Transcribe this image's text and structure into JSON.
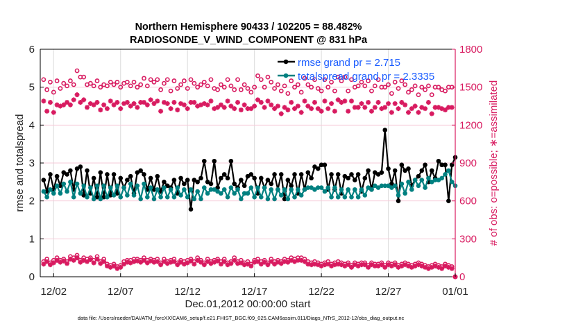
{
  "chart_data": {
    "type": "line",
    "title": [
      "Northern Hemisphere 90433 / 102205 = 88.482%",
      "RADIOSONDE_V_WIND_COMPONENT @ 831 hPa"
    ],
    "xlabel": "Dec.01,2012 00:00:00 start",
    "ylabel": "rmse and totalspread",
    "y2label": "# of obs: o=possible; ∗=assimilated",
    "footnote": "data file: /Users/raeder/DAI/ATM_forcXX/CAM6_setup/f.e21.FHIST_BGC.f09_025.CAM6assim.011/Diags_NTrS_2012-12/obs_diag_output.nc",
    "xlim_days": [
      0,
      31
    ],
    "ylim": [
      0,
      6
    ],
    "y2lim": [
      0,
      1800
    ],
    "xticks": [
      {
        "day": 1,
        "label": "12/02"
      },
      {
        "day": 6,
        "label": "12/07"
      },
      {
        "day": 11,
        "label": "12/12"
      },
      {
        "day": 16,
        "label": "12/17"
      },
      {
        "day": 21,
        "label": "12/22"
      },
      {
        "day": 26,
        "label": "12/27"
      },
      {
        "day": 31,
        "label": "01/01"
      }
    ],
    "yticks": [
      "0",
      "1",
      "2",
      "3",
      "4",
      "5",
      "6"
    ],
    "y2ticks": [
      "0",
      "300",
      "600",
      "900",
      "1200",
      "1500",
      "1800"
    ],
    "grid": true,
    "legend_position": "top-right",
    "x_start_day": 0.25,
    "x_step_days": 0.25,
    "colors": {
      "rmse": "#000000",
      "spread": "#008080",
      "obs": "#d81b60",
      "legend_text": "#1a5cff"
    },
    "series": [
      {
        "name": "rmse",
        "legend": "rmse grand pr = 2.715",
        "axis": "left",
        "values": [
          2.55,
          2.25,
          2.7,
          2.3,
          2.65,
          2.4,
          2.75,
          2.7,
          2.8,
          2.3,
          2.85,
          2.9,
          2.15,
          2.8,
          2.2,
          2.6,
          2.1,
          2.75,
          2.1,
          2.7,
          2.15,
          2.7,
          2.2,
          2.6,
          2.35,
          2.55,
          2.65,
          2.2,
          2.75,
          2.8,
          2.7,
          2.3,
          2.6,
          2.3,
          2.65,
          2.25,
          2.5,
          2.4,
          2.35,
          2.55,
          2.2,
          2.6,
          2.45,
          2.55,
          1.78,
          2.55,
          2.5,
          2.6,
          3.05,
          2.5,
          2.45,
          3.05,
          2.35,
          2.6,
          2.7,
          2.6,
          3.05,
          2.45,
          2.35,
          2.55,
          2.4,
          2.65,
          2.7,
          2.6,
          2.2,
          2.6,
          2.35,
          2.55,
          2.45,
          2.7,
          2.3,
          2.7,
          2.05,
          2.55,
          2.4,
          2.7,
          2.2,
          2.7,
          2.3,
          2.75,
          2.6,
          2.9,
          2.85,
          2.95,
          2.95,
          2.3,
          2.7,
          2.3,
          2.7,
          2.2,
          2.65,
          2.6,
          2.7,
          2.55,
          2.7,
          2.25,
          2.6,
          2.8,
          2.3,
          2.75,
          2.7,
          2.75,
          3.87,
          2.85,
          2.45,
          2.8,
          2.0,
          2.95,
          2.8,
          2.85,
          2.4,
          2.55,
          2.65,
          2.8,
          2.95,
          2.5,
          2.8,
          2.6,
          3.05,
          2.95,
          2.95,
          2.0,
          2.95,
          3.15
        ]
      },
      {
        "name": "totalspread",
        "legend": "totalspread grand pr = 2.3335",
        "axis": "left",
        "values": [
          2.25,
          2.1,
          2.3,
          2.2,
          2.4,
          2.2,
          2.45,
          2.25,
          2.5,
          2.1,
          2.45,
          2.2,
          2.4,
          2.1,
          2.35,
          2.05,
          2.4,
          2.05,
          2.4,
          2.1,
          2.35,
          2.15,
          2.4,
          2.1,
          2.35,
          2.15,
          2.45,
          2.15,
          2.4,
          2.05,
          2.45,
          2.1,
          2.35,
          2.05,
          2.3,
          2.1,
          2.35,
          2.1,
          2.3,
          2.1,
          2.35,
          2.15,
          2.3,
          2.1,
          2.3,
          2.05,
          2.25,
          2.05,
          2.35,
          2.2,
          2.3,
          2.3,
          2.25,
          2.2,
          2.3,
          2.1,
          2.35,
          2.2,
          2.3,
          2.05,
          2.2,
          2.2,
          2.35,
          2.1,
          2.35,
          2.1,
          2.35,
          2.05,
          2.3,
          2.05,
          2.3,
          2.15,
          2.3,
          2.05,
          2.3,
          2.1,
          2.3,
          2.15,
          2.3,
          2.35,
          2.35,
          2.3,
          2.35,
          2.35,
          2.25,
          2.35,
          2.1,
          2.35,
          2.1,
          2.3,
          2.1,
          2.3,
          2.1,
          2.3,
          2.1,
          2.3,
          2.15,
          2.35,
          2.3,
          2.4,
          2.35,
          2.4,
          2.4,
          2.4,
          2.35,
          2.4,
          2.15,
          2.45,
          2.2,
          2.5,
          2.3,
          2.55,
          2.4,
          2.55,
          2.35,
          2.6,
          2.5,
          2.55,
          2.55,
          2.6,
          2.7,
          2.8,
          2.5,
          2.4
        ]
      },
      {
        "name": "possible",
        "axis": "right",
        "marker": "o",
        "values": [
          1560,
          1480,
          1540,
          1460,
          1550,
          1490,
          1530,
          1510,
          1550,
          1520,
          1630,
          1580,
          1580,
          1520,
          1530,
          1510,
          1550,
          1500,
          1520,
          1510,
          1540,
          1520,
          1540,
          1500,
          1530,
          1540,
          1510,
          1540,
          1500,
          1520,
          1570,
          1510,
          1560,
          1540,
          1560,
          1480,
          1530,
          1560,
          1470,
          1550,
          1490,
          1520,
          1550,
          1490,
          1560,
          1530,
          1500,
          1520,
          1540,
          1510,
          1560,
          1490,
          1480,
          1520,
          1500,
          1560,
          1510,
          1480,
          1560,
          1480,
          1520,
          1490,
          1460,
          1500,
          1590,
          1560,
          1500,
          1580,
          1540,
          1490,
          1520,
          1470,
          1510,
          1450,
          1550,
          1500,
          1520,
          1460,
          1570,
          1520,
          1500,
          1560,
          1490,
          1470,
          1560,
          1500,
          1540,
          1470,
          1580,
          1550,
          1580,
          1470,
          1560,
          1500,
          1510,
          1540,
          1510,
          1550,
          1470,
          1510,
          1560,
          1500,
          1500,
          1520,
          1450,
          1540,
          1490,
          1550,
          1520,
          1460,
          1480,
          1510,
          1440,
          1500,
          1480,
          1510,
          1440,
          1500,
          1500,
          1480,
          1470,
          1500,
          1500,
          0
        ]
      },
      {
        "name": "assimilated",
        "axis": "right",
        "marker": "*",
        "values": [
          1390,
          1310,
          1380,
          1300,
          1360,
          1350,
          1360,
          1380,
          1360,
          1400,
          1440,
          1380,
          1400,
          1340,
          1370,
          1360,
          1380,
          1320,
          1360,
          1330,
          1390,
          1360,
          1380,
          1330,
          1370,
          1380,
          1350,
          1370,
          1340,
          1380,
          1380,
          1360,
          1400,
          1370,
          1390,
          1310,
          1380,
          1370,
          1330,
          1380,
          1320,
          1370,
          1360,
          1330,
          1380,
          1380,
          1350,
          1360,
          1370,
          1360,
          1390,
          1330,
          1340,
          1360,
          1340,
          1390,
          1350,
          1330,
          1380,
          1320,
          1360,
          1330,
          1330,
          1350,
          1400,
          1380,
          1340,
          1390,
          1360,
          1330,
          1350,
          1290,
          1340,
          1320,
          1380,
          1330,
          1350,
          1300,
          1390,
          1350,
          1330,
          1380,
          1330,
          1310,
          1390,
          1330,
          1370,
          1310,
          1400,
          1380,
          1390,
          1310,
          1390,
          1340,
          1340,
          1370,
          1340,
          1380,
          1310,
          1340,
          1380,
          1330,
          1340,
          1370,
          1300,
          1370,
          1330,
          1380,
          1360,
          1300,
          1330,
          1350,
          1300,
          1340,
          1330,
          1380,
          1290,
          1340,
          1340,
          1330,
          1320,
          1340,
          1340,
          0
        ]
      },
      {
        "name": "possible_lower",
        "axis": "right",
        "marker": "o",
        "values": [
          120,
          140,
          110,
          130,
          150,
          130,
          140,
          120,
          160,
          150,
          170,
          130,
          150,
          140,
          150,
          130,
          160,
          120,
          140,
          100,
          90,
          100,
          80,
          90,
          120,
          130,
          130,
          140,
          140,
          130,
          150,
          130,
          140,
          130,
          140,
          110,
          140,
          120,
          130,
          140,
          110,
          130,
          120,
          130,
          140,
          120,
          150,
          130,
          110,
          140,
          120,
          130,
          140,
          120,
          140,
          110,
          120,
          150,
          120,
          130,
          110,
          120,
          100,
          130,
          140,
          120,
          130,
          110,
          140,
          120,
          130,
          120,
          140,
          130,
          150,
          140,
          150,
          150,
          140,
          120,
          110,
          120,
          110,
          100,
          110,
          120,
          100,
          110,
          120,
          110,
          100,
          110,
          90,
          110,
          100,
          110,
          110,
          90,
          110,
          100,
          100,
          110,
          90,
          110,
          100,
          110,
          90,
          100,
          110,
          100,
          90,
          100,
          110,
          100,
          90,
          80,
          90,
          100,
          90,
          80,
          100,
          90,
          80,
          0
        ]
      },
      {
        "name": "assimilated_lower",
        "axis": "right",
        "marker": "*",
        "values": [
          100,
          120,
          95,
          110,
          130,
          115,
          125,
          105,
          140,
          130,
          150,
          115,
          130,
          120,
          135,
          110,
          140,
          105,
          120,
          85,
          75,
          85,
          65,
          75,
          100,
          115,
          110,
          120,
          125,
          115,
          130,
          110,
          125,
          115,
          120,
          95,
          120,
          105,
          115,
          120,
          95,
          115,
          100,
          110,
          125,
          100,
          130,
          115,
          95,
          120,
          105,
          115,
          125,
          100,
          120,
          95,
          105,
          130,
          105,
          110,
          95,
          100,
          85,
          115,
          120,
          100,
          115,
          95,
          120,
          100,
          115,
          105,
          120,
          115,
          130,
          120,
          130,
          130,
          120,
          100,
          95,
          100,
          95,
          85,
          95,
          100,
          85,
          95,
          100,
          95,
          85,
          95,
          75,
          95,
          85,
          95,
          95,
          75,
          95,
          85,
          85,
          95,
          75,
          95,
          85,
          95,
          75,
          85,
          95,
          85,
          75,
          85,
          95,
          85,
          75,
          65,
          75,
          85,
          75,
          65,
          85,
          75,
          65,
          0
        ]
      }
    ]
  }
}
